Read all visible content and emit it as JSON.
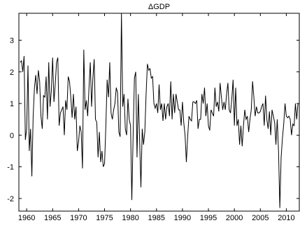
{
  "chart_data": {
    "type": "line",
    "title": "ΔGDP",
    "xlabel": "",
    "ylabel": "",
    "xlim": [
      1958.5,
      2012.5
    ],
    "ylim": [
      -2.4,
      3.85
    ],
    "xticks": [
      1960,
      1965,
      1970,
      1975,
      1980,
      1985,
      1990,
      1995,
      2000,
      2005,
      2010
    ],
    "yticks": [
      -2,
      -1,
      0,
      1,
      2,
      3
    ],
    "grid": false,
    "series": [
      {
        "name": "",
        "color": "#000000",
        "points": [
          [
            1958.75,
            2.3
          ],
          [
            1959.0,
            2.35
          ],
          [
            1959.25,
            2.0
          ],
          [
            1959.5,
            2.5
          ],
          [
            1959.75,
            -0.15
          ],
          [
            1960.0,
            0.2
          ],
          [
            1960.25,
            2.2
          ],
          [
            1960.5,
            -0.5
          ],
          [
            1960.75,
            0.2
          ],
          [
            1961.0,
            -1.3
          ],
          [
            1961.25,
            0.6
          ],
          [
            1961.5,
            1.5
          ],
          [
            1961.75,
            1.9
          ],
          [
            1962.0,
            1.3
          ],
          [
            1962.25,
            2.05
          ],
          [
            1962.5,
            1.7
          ],
          [
            1962.75,
            0.6
          ],
          [
            1963.0,
            0.2
          ],
          [
            1963.25,
            1.25
          ],
          [
            1963.5,
            1.2
          ],
          [
            1963.75,
            1.85
          ],
          [
            1964.0,
            0.5
          ],
          [
            1964.25,
            2.3
          ],
          [
            1964.5,
            0.9
          ],
          [
            1964.75,
            1.4
          ],
          [
            1965.0,
            2.45
          ],
          [
            1965.25,
            1.05
          ],
          [
            1965.5,
            1.6
          ],
          [
            1965.75,
            2.3
          ],
          [
            1966.0,
            2.45
          ],
          [
            1966.25,
            0.3
          ],
          [
            1966.5,
            0.7
          ],
          [
            1966.75,
            0.8
          ],
          [
            1967.0,
            0.9
          ],
          [
            1967.25,
            0.0
          ],
          [
            1967.5,
            1.1
          ],
          [
            1967.75,
            0.8
          ],
          [
            1968.0,
            1.85
          ],
          [
            1968.25,
            1.7
          ],
          [
            1968.5,
            1.2
          ],
          [
            1968.75,
            0.55
          ],
          [
            1969.0,
            1.3
          ],
          [
            1969.25,
            0.5
          ],
          [
            1969.5,
            0.9
          ],
          [
            1969.75,
            -0.5
          ],
          [
            1970.0,
            -0.2
          ],
          [
            1970.25,
            0.3
          ],
          [
            1970.5,
            0.1
          ],
          [
            1970.75,
            -1.05
          ],
          [
            1971.0,
            2.7
          ],
          [
            1971.25,
            0.8
          ],
          [
            1971.5,
            1.1
          ],
          [
            1971.75,
            0.6
          ],
          [
            1972.0,
            1.5
          ],
          [
            1972.25,
            2.3
          ],
          [
            1972.5,
            0.9
          ],
          [
            1972.75,
            1.8
          ],
          [
            1973.0,
            2.4
          ],
          [
            1973.25,
            0.5
          ],
          [
            1973.5,
            0.4
          ],
          [
            1973.75,
            -0.7
          ],
          [
            1974.0,
            0.1
          ],
          [
            1974.25,
            -0.85
          ],
          [
            1974.5,
            -0.5
          ],
          [
            1974.75,
            -1.0
          ],
          [
            1975.0,
            -0.9
          ],
          [
            1975.25,
            0.3
          ],
          [
            1975.5,
            1.75
          ],
          [
            1975.75,
            1.2
          ],
          [
            1976.0,
            2.3
          ],
          [
            1976.25,
            0.7
          ],
          [
            1976.5,
            0.5
          ],
          [
            1976.75,
            0.8
          ],
          [
            1977.0,
            1.0
          ],
          [
            1977.25,
            1.5
          ],
          [
            1977.5,
            1.35
          ],
          [
            1977.75,
            0.1
          ],
          [
            1978.0,
            -0.05
          ],
          [
            1978.25,
            3.85
          ],
          [
            1978.5,
            0.9
          ],
          [
            1978.75,
            1.3
          ],
          [
            1979.0,
            0.2
          ],
          [
            1979.25,
            0.0
          ],
          [
            1979.5,
            1.15
          ],
          [
            1979.75,
            0.5
          ],
          [
            1980.0,
            0.3
          ],
          [
            1980.25,
            -2.05
          ],
          [
            1980.5,
            0.0
          ],
          [
            1980.75,
            1.8
          ],
          [
            1981.0,
            2.0
          ],
          [
            1981.25,
            -0.7
          ],
          [
            1981.5,
            1.3
          ],
          [
            1981.75,
            -0.15
          ],
          [
            1982.0,
            -1.65
          ],
          [
            1982.25,
            0.2
          ],
          [
            1982.5,
            -0.3
          ],
          [
            1982.75,
            0.1
          ],
          [
            1983.0,
            1.3
          ],
          [
            1983.25,
            2.25
          ],
          [
            1983.5,
            2.05
          ],
          [
            1983.75,
            2.1
          ],
          [
            1984.0,
            1.8
          ],
          [
            1984.25,
            1.85
          ],
          [
            1984.5,
            1.0
          ],
          [
            1984.75,
            0.85
          ],
          [
            1985.0,
            1.0
          ],
          [
            1985.25,
            0.7
          ],
          [
            1985.5,
            1.6
          ],
          [
            1985.75,
            0.8
          ],
          [
            1986.0,
            1.0
          ],
          [
            1986.25,
            0.45
          ],
          [
            1986.5,
            1.0
          ],
          [
            1986.75,
            0.5
          ],
          [
            1987.0,
            0.9
          ],
          [
            1987.25,
            1.0
          ],
          [
            1987.5,
            0.6
          ],
          [
            1987.75,
            1.7
          ],
          [
            1988.0,
            0.5
          ],
          [
            1988.25,
            1.3
          ],
          [
            1988.5,
            0.7
          ],
          [
            1988.75,
            1.3
          ],
          [
            1989.0,
            1.05
          ],
          [
            1989.25,
            0.8
          ],
          [
            1989.5,
            0.8
          ],
          [
            1989.75,
            0.3
          ],
          [
            1990.0,
            1.05
          ],
          [
            1990.25,
            0.4
          ],
          [
            1990.5,
            0.0
          ],
          [
            1990.75,
            -0.85
          ],
          [
            1991.0,
            -0.05
          ],
          [
            1991.25,
            0.6
          ],
          [
            1991.5,
            0.5
          ],
          [
            1991.75,
            0.45
          ],
          [
            1992.0,
            1.05
          ],
          [
            1992.25,
            1.05
          ],
          [
            1992.5,
            1.0
          ],
          [
            1992.75,
            1.1
          ],
          [
            1993.0,
            0.2
          ],
          [
            1993.25,
            0.5
          ],
          [
            1993.5,
            0.5
          ],
          [
            1993.75,
            1.3
          ],
          [
            1994.0,
            1.0
          ],
          [
            1994.25,
            1.5
          ],
          [
            1994.5,
            0.6
          ],
          [
            1994.75,
            1.0
          ],
          [
            1995.0,
            0.3
          ],
          [
            1995.25,
            0.15
          ],
          [
            1995.5,
            0.8
          ],
          [
            1995.75,
            0.7
          ],
          [
            1996.0,
            0.6
          ],
          [
            1996.25,
            1.5
          ],
          [
            1996.5,
            0.9
          ],
          [
            1996.75,
            1.05
          ],
          [
            1997.0,
            0.75
          ],
          [
            1997.25,
            1.65
          ],
          [
            1997.5,
            1.2
          ],
          [
            1997.75,
            0.8
          ],
          [
            1998.0,
            1.05
          ],
          [
            1998.25,
            0.8
          ],
          [
            1998.5,
            1.3
          ],
          [
            1998.75,
            1.65
          ],
          [
            1999.0,
            0.8
          ],
          [
            1999.25,
            0.7
          ],
          [
            1999.5,
            1.15
          ],
          [
            1999.75,
            1.75
          ],
          [
            2000.0,
            0.3
          ],
          [
            2000.25,
            1.5
          ],
          [
            2000.5,
            0.3
          ],
          [
            2000.75,
            0.5
          ],
          [
            2001.0,
            -0.3
          ],
          [
            2001.25,
            0.3
          ],
          [
            2001.5,
            -0.35
          ],
          [
            2001.75,
            0.3
          ],
          [
            2002.0,
            0.8
          ],
          [
            2002.25,
            0.5
          ],
          [
            2002.5,
            0.6
          ],
          [
            2002.75,
            0.1
          ],
          [
            2003.0,
            0.5
          ],
          [
            2003.25,
            0.8
          ],
          [
            2003.5,
            1.7
          ],
          [
            2003.75,
            1.2
          ],
          [
            2004.0,
            0.6
          ],
          [
            2004.25,
            0.9
          ],
          [
            2004.5,
            0.7
          ],
          [
            2004.75,
            0.7
          ],
          [
            2005.0,
            0.75
          ],
          [
            2005.25,
            0.9
          ],
          [
            2005.5,
            1.0
          ],
          [
            2005.75,
            0.3
          ],
          [
            2006.0,
            1.25
          ],
          [
            2006.25,
            0.5
          ],
          [
            2006.5,
            0.2
          ],
          [
            2006.75,
            0.75
          ],
          [
            2007.0,
            0.0
          ],
          [
            2007.25,
            0.8
          ],
          [
            2007.5,
            0.6
          ],
          [
            2007.75,
            0.4
          ],
          [
            2008.0,
            -0.3
          ],
          [
            2008.25,
            0.5
          ],
          [
            2008.5,
            -0.5
          ],
          [
            2008.75,
            -2.3
          ],
          [
            2009.0,
            -0.7
          ],
          [
            2009.25,
            -0.1
          ],
          [
            2009.5,
            0.35
          ],
          [
            2009.75,
            1.0
          ],
          [
            2010.0,
            0.6
          ],
          [
            2010.25,
            0.55
          ],
          [
            2010.5,
            0.6
          ],
          [
            2010.75,
            0.5
          ],
          [
            2011.0,
            0.0
          ],
          [
            2011.25,
            0.35
          ],
          [
            2011.5,
            0.3
          ],
          [
            2011.75,
            1.0
          ],
          [
            2012.0,
            0.5
          ],
          [
            2012.25,
            1.0
          ]
        ]
      }
    ]
  }
}
